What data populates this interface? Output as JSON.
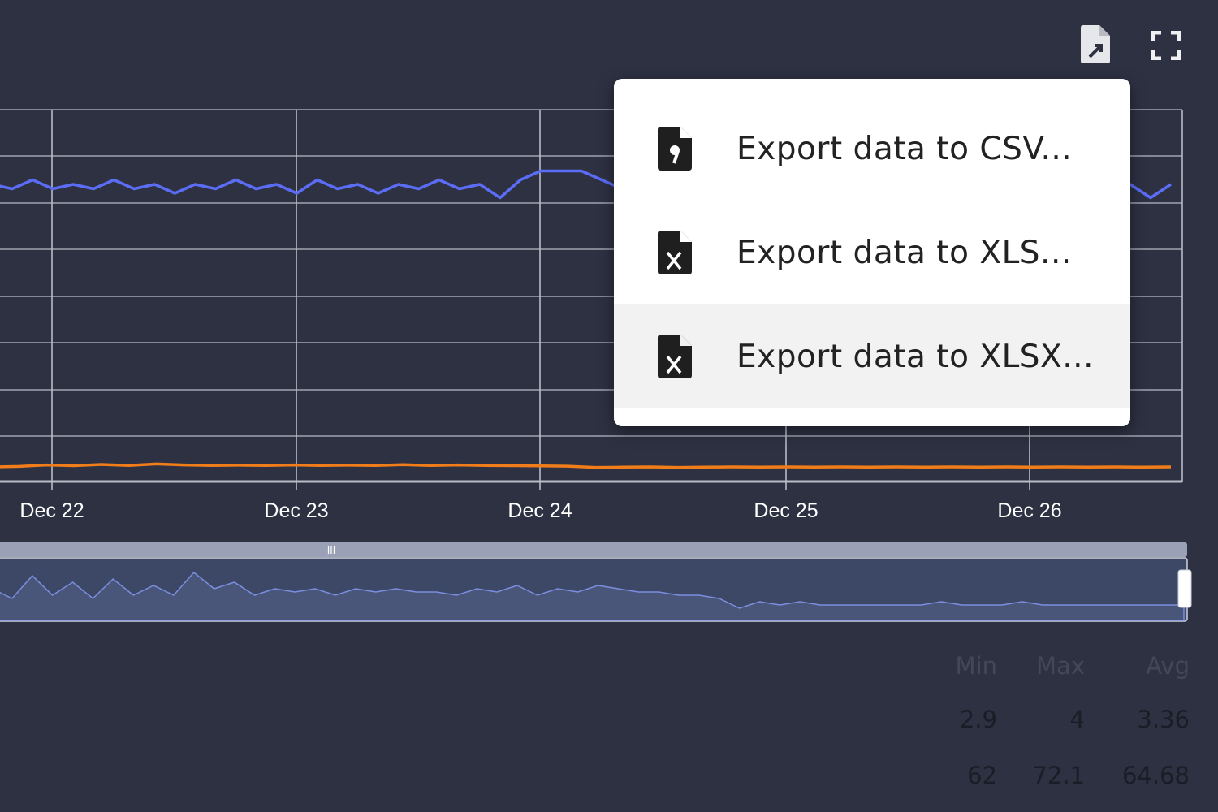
{
  "toolbar": {
    "export_icon": "export-file-icon",
    "fullscreen_icon": "fullscreen-icon"
  },
  "export_menu": {
    "items": [
      {
        "label": "Export data to CSV...",
        "icon": "csv-file-icon"
      },
      {
        "label": "Export data to XLS...",
        "icon": "xls-file-icon"
      },
      {
        "label": "Export data to XLSX...",
        "icon": "xlsx-file-icon",
        "hovered": true
      }
    ]
  },
  "stats": {
    "headers": [
      "Min",
      "Max",
      "Avg"
    ],
    "rows": [
      [
        "2.9",
        "4",
        "3.36"
      ],
      [
        "62",
        "72.1",
        "64.68"
      ]
    ]
  },
  "colors": {
    "background": "#2d3142",
    "series_blue": "#5b6cf5",
    "series_orange": "#f07d1a",
    "grid": "#b9bcc6",
    "navigator_fill": "#4a5679"
  },
  "chart_data": {
    "type": "line",
    "x_ticks": [
      "Dec 22",
      "Dec 23",
      "Dec 24",
      "Dec 25",
      "Dec 26"
    ],
    "series": [
      {
        "color": "#5b6cf5",
        "values": [
          3.4,
          3.3,
          3.5,
          3.3,
          3.4,
          3.3,
          3.5,
          3.3,
          3.4,
          3.2,
          3.4,
          3.3,
          3.5,
          3.3,
          3.4,
          3.2,
          3.5,
          3.3,
          3.4,
          3.2,
          3.4,
          3.3,
          3.5,
          3.3,
          3.4,
          3.1,
          3.5,
          3.7,
          3.7,
          3.7,
          3.5,
          3.3,
          3.4,
          3.3,
          3.5,
          3.3,
          3.4,
          3.2,
          3.4,
          3.3,
          3.5,
          3.3,
          3.4,
          3.2,
          3.5,
          3.3,
          3.4,
          3.2,
          3.4,
          3.3,
          3.5,
          3.3,
          3.4,
          3.2,
          3.5,
          3.3,
          3.4,
          3.1,
          3.4
        ]
      },
      {
        "color": "#f07d1a",
        "values": [
          64,
          64.2,
          64.8,
          64.5,
          65,
          64.6,
          65.2,
          64.8,
          64.6,
          64.7,
          64.6,
          64.8,
          64.6,
          64.7,
          64.6,
          64.9,
          64.6,
          64.8,
          64.6,
          64.5,
          64.4,
          64.3,
          63.8,
          63.9,
          64,
          63.8,
          63.9,
          64,
          63.9,
          64,
          63.9,
          64,
          63.9,
          64,
          63.9,
          64,
          63.9,
          64,
          63.9,
          64,
          63.9,
          64,
          63.9,
          64
        ]
      }
    ],
    "navigator_values": [
      3.5,
      3.2,
      3.9,
      3.3,
      3.7,
      3.2,
      3.8,
      3.3,
      3.6,
      3.3,
      4,
      3.5,
      3.7,
      3.3,
      3.5,
      3.4,
      3.5,
      3.3,
      3.5,
      3.4,
      3.5,
      3.4,
      3.4,
      3.3,
      3.5,
      3.4,
      3.6,
      3.3,
      3.5,
      3.4,
      3.6,
      3.5,
      3.4,
      3.4,
      3.3,
      3.3,
      3.2,
      2.9,
      3.1,
      3.0,
      3.1,
      3.0,
      3.0,
      3.0,
      3.0,
      3.0,
      3.0,
      3.1,
      3.0,
      3.0,
      3.0,
      3.1,
      3.0,
      3.0,
      3.0,
      3.0,
      3.0,
      3.0,
      3.0,
      3.0
    ]
  }
}
